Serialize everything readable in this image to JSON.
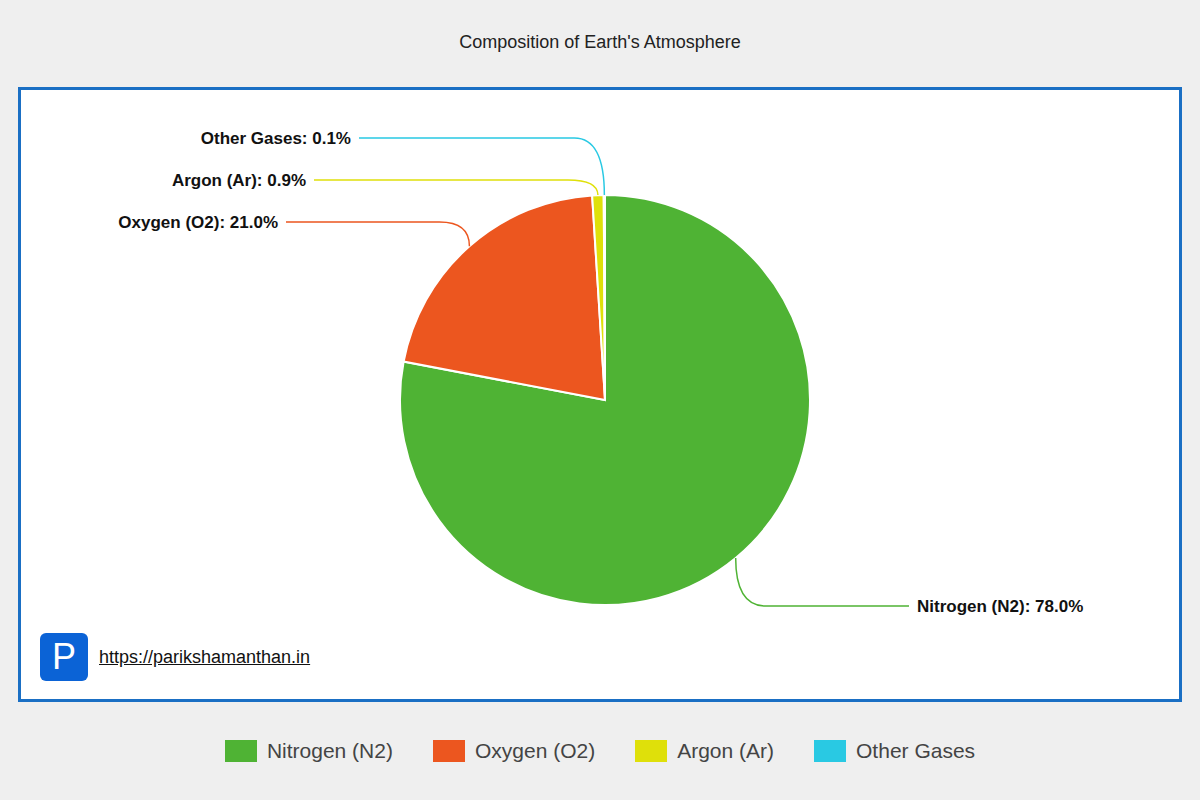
{
  "chart_data": {
    "type": "pie",
    "title": "Composition of Earth's Atmosphere",
    "categories": [
      "Nitrogen (N2)",
      "Oxygen (O2)",
      "Argon (Ar)",
      "Other Gases"
    ],
    "values": [
      78.0,
      21.0,
      0.9,
      0.1
    ],
    "value_labels": [
      "Nitrogen (N2): 78.0%",
      "Oxygen (O2): 21.0%",
      "Argon (Ar): 0.9%",
      "Other Gases: 0.1%"
    ],
    "colors": [
      "#4fb334",
      "#ec561f",
      "#dfe00a",
      "#29c9e3"
    ],
    "data_labels": true,
    "legend": "bottom",
    "annotations": [
      "P",
      "https://parikshamanthan.in"
    ]
  }
}
